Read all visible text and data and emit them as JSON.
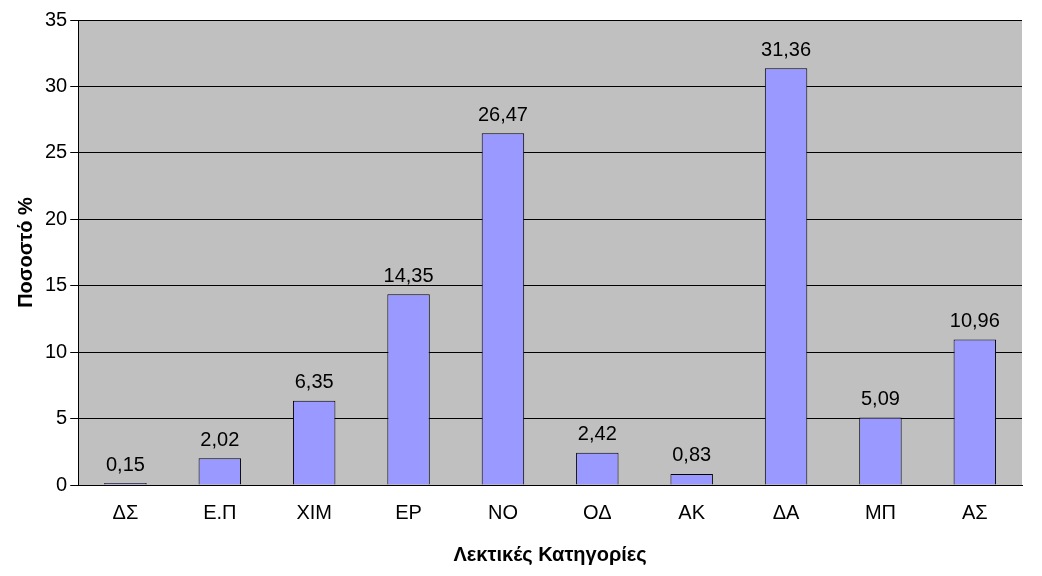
{
  "chart_data": {
    "type": "bar",
    "xlabel": "Λεκτικές Κατηγορίες",
    "ylabel": "Ποσοστό %",
    "categories": [
      "ΔΣ",
      "Ε.Π",
      "ΧΙΜ",
      "ΕΡ",
      "ΝΟ",
      "ΟΔ",
      "ΑΚ",
      "ΔΑ",
      "ΜΠ",
      "ΑΣ"
    ],
    "values": [
      0.15,
      2.02,
      6.35,
      14.35,
      26.47,
      2.42,
      0.83,
      31.36,
      5.09,
      10.96
    ],
    "value_labels": [
      "0,15",
      "2,02",
      "6,35",
      "14,35",
      "26,47",
      "2,42",
      "0,83",
      "31,36",
      "5,09",
      "10,96"
    ],
    "color": "#9999ff",
    "ylim": [
      0,
      35
    ],
    "yticks": [
      0,
      5,
      10,
      15,
      20,
      25,
      30,
      35
    ],
    "grid": "y",
    "legend": false
  }
}
